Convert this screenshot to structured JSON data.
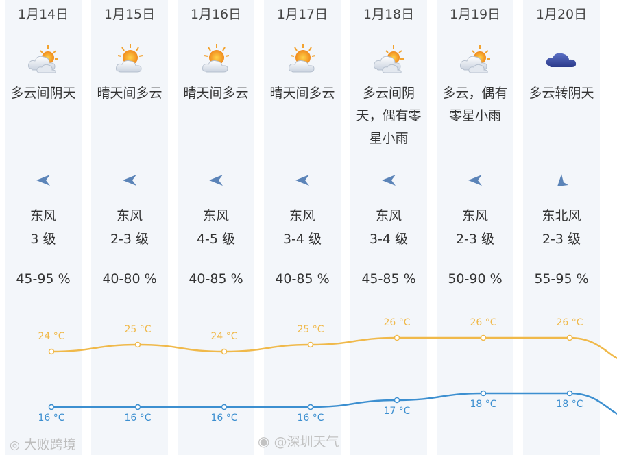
{
  "days": [
    {
      "date": "1月14日",
      "desc": [
        "多云间阴天"
      ],
      "icon": "partly-cloudy-icon",
      "wind_dir": "东风",
      "wind_level": "3 级",
      "wind_arrow": "east-wind-arrow-icon",
      "humidity": "45-95 %",
      "high": "24 °C",
      "low": "16 °C"
    },
    {
      "date": "1月15日",
      "desc": [
        "晴天间多云"
      ],
      "icon": "sunny-cloud-icon",
      "wind_dir": "东风",
      "wind_level": "2-3 级",
      "wind_arrow": "east-wind-arrow-icon",
      "humidity": "40-80 %",
      "high": "25 °C",
      "low": "16 °C"
    },
    {
      "date": "1月16日",
      "desc": [
        "晴天间多云"
      ],
      "icon": "sunny-cloud-icon",
      "wind_dir": "东风",
      "wind_level": "4-5 级",
      "wind_arrow": "east-wind-arrow-icon",
      "humidity": "40-85 %",
      "high": "24 °C",
      "low": "16 °C"
    },
    {
      "date": "1月17日",
      "desc": [
        "晴天间多云"
      ],
      "icon": "sunny-cloud-icon",
      "wind_dir": "东风",
      "wind_level": "3-4 级",
      "wind_arrow": "east-wind-arrow-icon",
      "humidity": "40-85 %",
      "high": "25 °C",
      "low": "16 °C"
    },
    {
      "date": "1月18日",
      "desc": [
        "多云间阴",
        "天，偶有零",
        "星小雨"
      ],
      "icon": "partly-cloudy-icon",
      "wind_dir": "东风",
      "wind_level": "3-4 级",
      "wind_arrow": "east-wind-arrow-icon",
      "humidity": "45-85 %",
      "high": "26 °C",
      "low": "17 °C"
    },
    {
      "date": "1月19日",
      "desc": [
        "多云，偶有",
        "零星小雨"
      ],
      "icon": "partly-cloudy-icon",
      "wind_dir": "东风",
      "wind_level": "2-3 级",
      "wind_arrow": "east-wind-arrow-icon",
      "humidity": "50-90 %",
      "high": "26 °C",
      "low": "18 °C"
    },
    {
      "date": "1月20日",
      "desc": [
        "多云转阴天"
      ],
      "icon": "dark-cloud-icon",
      "wind_dir": "东北风",
      "wind_level": "2-3 级",
      "wind_arrow": "northeast-wind-arrow-icon",
      "humidity": "55-95 %",
      "high": "26 °C",
      "low": "18 °C"
    }
  ],
  "chart_data": {
    "type": "line",
    "categories": [
      "1月14日",
      "1月15日",
      "1月16日",
      "1月17日",
      "1月18日",
      "1月19日",
      "1月20日"
    ],
    "series": [
      {
        "values": [
          24,
          25,
          24,
          25,
          26,
          26,
          26
        ],
        "color": "#f0b94a"
      },
      {
        "values": [
          16,
          16,
          16,
          16,
          17,
          18,
          18
        ],
        "color": "#3c8fd0"
      }
    ],
    "grid": false
  },
  "watermarks": {
    "left": "大败跨境",
    "center": "@深圳天气"
  },
  "colors": {
    "high_line": "#f0b94a",
    "low_line": "#3c8fd0",
    "wind_arrow": "#5b84b8",
    "column_bg": "#f3f6fa"
  }
}
